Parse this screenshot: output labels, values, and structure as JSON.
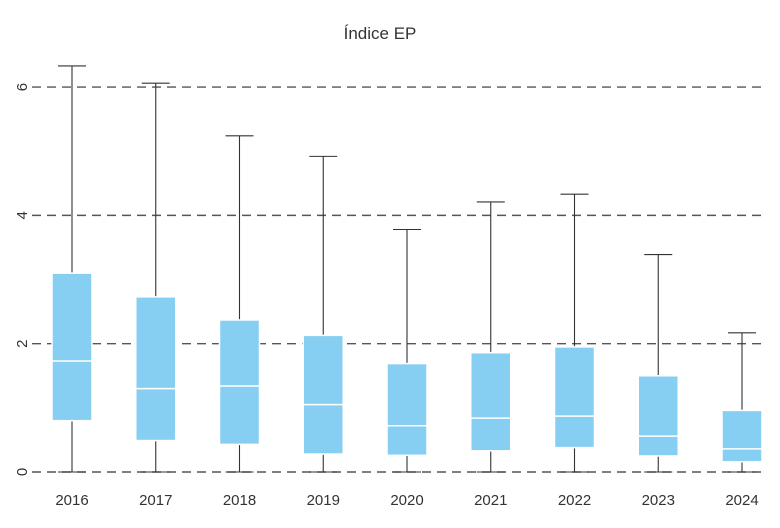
{
  "chart_data": {
    "type": "boxplot",
    "title": "Índice EP",
    "xlabel": "",
    "ylabel": "",
    "ylim": [
      0,
      6.5
    ],
    "yticks": [
      0,
      2,
      4,
      6
    ],
    "grid": "horizontal-dashed",
    "categories": [
      "2016",
      "2017",
      "2018",
      "2019",
      "2020",
      "2021",
      "2022",
      "2023",
      "2024"
    ],
    "boxes": [
      {
        "label": "2016",
        "min": 0,
        "q1": 0.8,
        "median": 1.73,
        "q3": 3.1,
        "max": 6.33
      },
      {
        "label": "2017",
        "min": 0,
        "q1": 0.49,
        "median": 1.3,
        "q3": 2.73,
        "max": 6.06
      },
      {
        "label": "2018",
        "min": 0,
        "q1": 0.43,
        "median": 1.34,
        "q3": 2.37,
        "max": 5.24
      },
      {
        "label": "2019",
        "min": 0,
        "q1": 0.28,
        "median": 1.05,
        "q3": 2.13,
        "max": 4.92
      },
      {
        "label": "2020",
        "min": 0,
        "q1": 0.26,
        "median": 0.72,
        "q3": 1.69,
        "max": 3.78
      },
      {
        "label": "2021",
        "min": 0,
        "q1": 0.33,
        "median": 0.84,
        "q3": 1.86,
        "max": 4.21
      },
      {
        "label": "2022",
        "min": 0,
        "q1": 0.38,
        "median": 0.87,
        "q3": 1.95,
        "max": 4.33
      },
      {
        "label": "2023",
        "min": 0,
        "q1": 0.25,
        "median": 0.56,
        "q3": 1.5,
        "max": 3.39
      },
      {
        "label": "2024",
        "min": 0,
        "q1": 0.16,
        "median": 0.36,
        "q3": 0.96,
        "max": 2.17
      }
    ],
    "colors": {
      "box_fill": "#87cff2",
      "box_edge": "#ffffff",
      "whisker": "#333333",
      "grid": "#555555",
      "text": "#333333"
    }
  }
}
